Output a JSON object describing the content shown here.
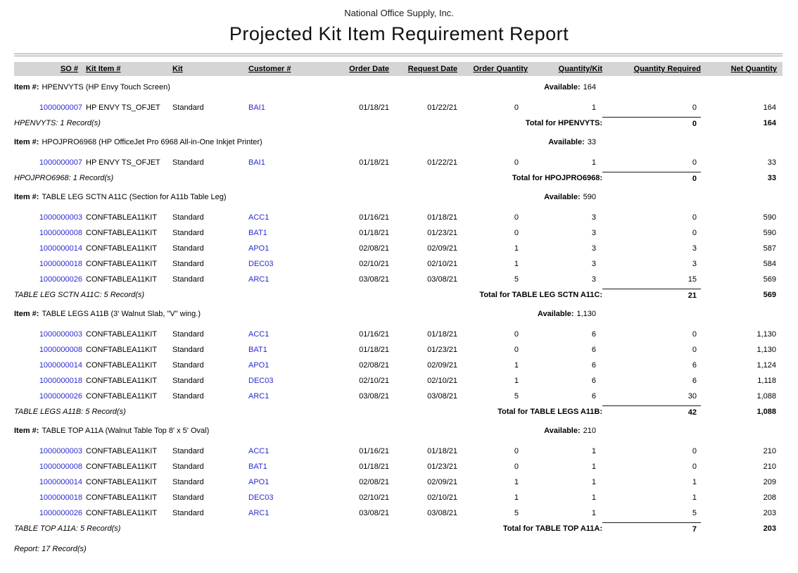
{
  "report": {
    "company": "National Office Supply, Inc.",
    "title": "Projected Kit Item Requirement Report",
    "footer": "Report: 17 Record(s)"
  },
  "labels": {
    "item_prefix": "Item #:",
    "available_prefix": "Available:"
  },
  "columns": [
    "SO #",
    "Kit Item #",
    "Kit",
    "Customer #",
    "Order Date",
    "Request Date",
    "Order Quantity",
    "Quantity/Kit",
    "Quantity Required",
    "Net Quantity"
  ],
  "link_color": "#2b2bd0",
  "header_band_color": "#d5d5d5",
  "groups": [
    {
      "item": "HPENVYTS (HP Envy Touch Screen)",
      "available": "164",
      "rows": [
        {
          "so": "1000000007",
          "kit_item": "HP ENVY TS_OFJET",
          "kit": "Standard",
          "customer": "BAI1",
          "order_date": "01/18/21",
          "request_date": "01/22/21",
          "order_qty": "0",
          "qty_per_kit": "1",
          "qty_required": "0",
          "net_qty": "164"
        }
      ],
      "records": "HPENVYTS: 1 Record(s)",
      "total_label": "Total for HPENVYTS:",
      "total_required": "0",
      "total_net": "164"
    },
    {
      "item": "HPOJPRO6968 (HP OfficeJet Pro 6968 All-in-One Inkjet Printer)",
      "available": "33",
      "rows": [
        {
          "so": "1000000007",
          "kit_item": "HP ENVY TS_OFJET",
          "kit": "Standard",
          "customer": "BAI1",
          "order_date": "01/18/21",
          "request_date": "01/22/21",
          "order_qty": "0",
          "qty_per_kit": "1",
          "qty_required": "0",
          "net_qty": "33"
        }
      ],
      "records": "HPOJPRO6968: 1 Record(s)",
      "total_label": "Total for HPOJPRO6968:",
      "total_required": "0",
      "total_net": "33"
    },
    {
      "item": "TABLE LEG SCTN A11C (Section for A11b Table Leg)",
      "available": "590",
      "rows": [
        {
          "so": "1000000003",
          "kit_item": "CONFTABLEA11KIT",
          "kit": "Standard",
          "customer": "ACC1",
          "order_date": "01/16/21",
          "request_date": "01/18/21",
          "order_qty": "0",
          "qty_per_kit": "3",
          "qty_required": "0",
          "net_qty": "590"
        },
        {
          "so": "1000000008",
          "kit_item": "CONFTABLEA11KIT",
          "kit": "Standard",
          "customer": "BAT1",
          "order_date": "01/18/21",
          "request_date": "01/23/21",
          "order_qty": "0",
          "qty_per_kit": "3",
          "qty_required": "0",
          "net_qty": "590"
        },
        {
          "so": "1000000014",
          "kit_item": "CONFTABLEA11KIT",
          "kit": "Standard",
          "customer": "APO1",
          "order_date": "02/08/21",
          "request_date": "02/09/21",
          "order_qty": "1",
          "qty_per_kit": "3",
          "qty_required": "3",
          "net_qty": "587"
        },
        {
          "so": "1000000018",
          "kit_item": "CONFTABLEA11KIT",
          "kit": "Standard",
          "customer": "DEC03",
          "order_date": "02/10/21",
          "request_date": "02/10/21",
          "order_qty": "1",
          "qty_per_kit": "3",
          "qty_required": "3",
          "net_qty": "584"
        },
        {
          "so": "1000000026",
          "kit_item": "CONFTABLEA11KIT",
          "kit": "Standard",
          "customer": "ARC1",
          "order_date": "03/08/21",
          "request_date": "03/08/21",
          "order_qty": "5",
          "qty_per_kit": "3",
          "qty_required": "15",
          "net_qty": "569"
        }
      ],
      "records": "TABLE LEG SCTN A11C: 5 Record(s)",
      "total_label": "Total for TABLE LEG SCTN A11C:",
      "total_required": "21",
      "total_net": "569"
    },
    {
      "item": "TABLE LEGS A11B (3' Walnut Slab, \"V\" wing.)",
      "available": "1,130",
      "rows": [
        {
          "so": "1000000003",
          "kit_item": "CONFTABLEA11KIT",
          "kit": "Standard",
          "customer": "ACC1",
          "order_date": "01/16/21",
          "request_date": "01/18/21",
          "order_qty": "0",
          "qty_per_kit": "6",
          "qty_required": "0",
          "net_qty": "1,130"
        },
        {
          "so": "1000000008",
          "kit_item": "CONFTABLEA11KIT",
          "kit": "Standard",
          "customer": "BAT1",
          "order_date": "01/18/21",
          "request_date": "01/23/21",
          "order_qty": "0",
          "qty_per_kit": "6",
          "qty_required": "0",
          "net_qty": "1,130"
        },
        {
          "so": "1000000014",
          "kit_item": "CONFTABLEA11KIT",
          "kit": "Standard",
          "customer": "APO1",
          "order_date": "02/08/21",
          "request_date": "02/09/21",
          "order_qty": "1",
          "qty_per_kit": "6",
          "qty_required": "6",
          "net_qty": "1,124"
        },
        {
          "so": "1000000018",
          "kit_item": "CONFTABLEA11KIT",
          "kit": "Standard",
          "customer": "DEC03",
          "order_date": "02/10/21",
          "request_date": "02/10/21",
          "order_qty": "1",
          "qty_per_kit": "6",
          "qty_required": "6",
          "net_qty": "1,118"
        },
        {
          "so": "1000000026",
          "kit_item": "CONFTABLEA11KIT",
          "kit": "Standard",
          "customer": "ARC1",
          "order_date": "03/08/21",
          "request_date": "03/08/21",
          "order_qty": "5",
          "qty_per_kit": "6",
          "qty_required": "30",
          "net_qty": "1,088"
        }
      ],
      "records": "TABLE LEGS A11B: 5 Record(s)",
      "total_label": "Total for TABLE LEGS A11B:",
      "total_required": "42",
      "total_net": "1,088"
    },
    {
      "item": "TABLE TOP A11A (Walnut Table Top 8' x 5' Oval)",
      "available": "210",
      "rows": [
        {
          "so": "1000000003",
          "kit_item": "CONFTABLEA11KIT",
          "kit": "Standard",
          "customer": "ACC1",
          "order_date": "01/16/21",
          "request_date": "01/18/21",
          "order_qty": "0",
          "qty_per_kit": "1",
          "qty_required": "0",
          "net_qty": "210"
        },
        {
          "so": "1000000008",
          "kit_item": "CONFTABLEA11KIT",
          "kit": "Standard",
          "customer": "BAT1",
          "order_date": "01/18/21",
          "request_date": "01/23/21",
          "order_qty": "0",
          "qty_per_kit": "1",
          "qty_required": "0",
          "net_qty": "210"
        },
        {
          "so": "1000000014",
          "kit_item": "CONFTABLEA11KIT",
          "kit": "Standard",
          "customer": "APO1",
          "order_date": "02/08/21",
          "request_date": "02/09/21",
          "order_qty": "1",
          "qty_per_kit": "1",
          "qty_required": "1",
          "net_qty": "209"
        },
        {
          "so": "1000000018",
          "kit_item": "CONFTABLEA11KIT",
          "kit": "Standard",
          "customer": "DEC03",
          "order_date": "02/10/21",
          "request_date": "02/10/21",
          "order_qty": "1",
          "qty_per_kit": "1",
          "qty_required": "1",
          "net_qty": "208"
        },
        {
          "so": "1000000026",
          "kit_item": "CONFTABLEA11KIT",
          "kit": "Standard",
          "customer": "ARC1",
          "order_date": "03/08/21",
          "request_date": "03/08/21",
          "order_qty": "5",
          "qty_per_kit": "1",
          "qty_required": "5",
          "net_qty": "203"
        }
      ],
      "records": "TABLE TOP A11A: 5 Record(s)",
      "total_label": "Total for TABLE TOP A11A:",
      "total_required": "7",
      "total_net": "203"
    }
  ]
}
